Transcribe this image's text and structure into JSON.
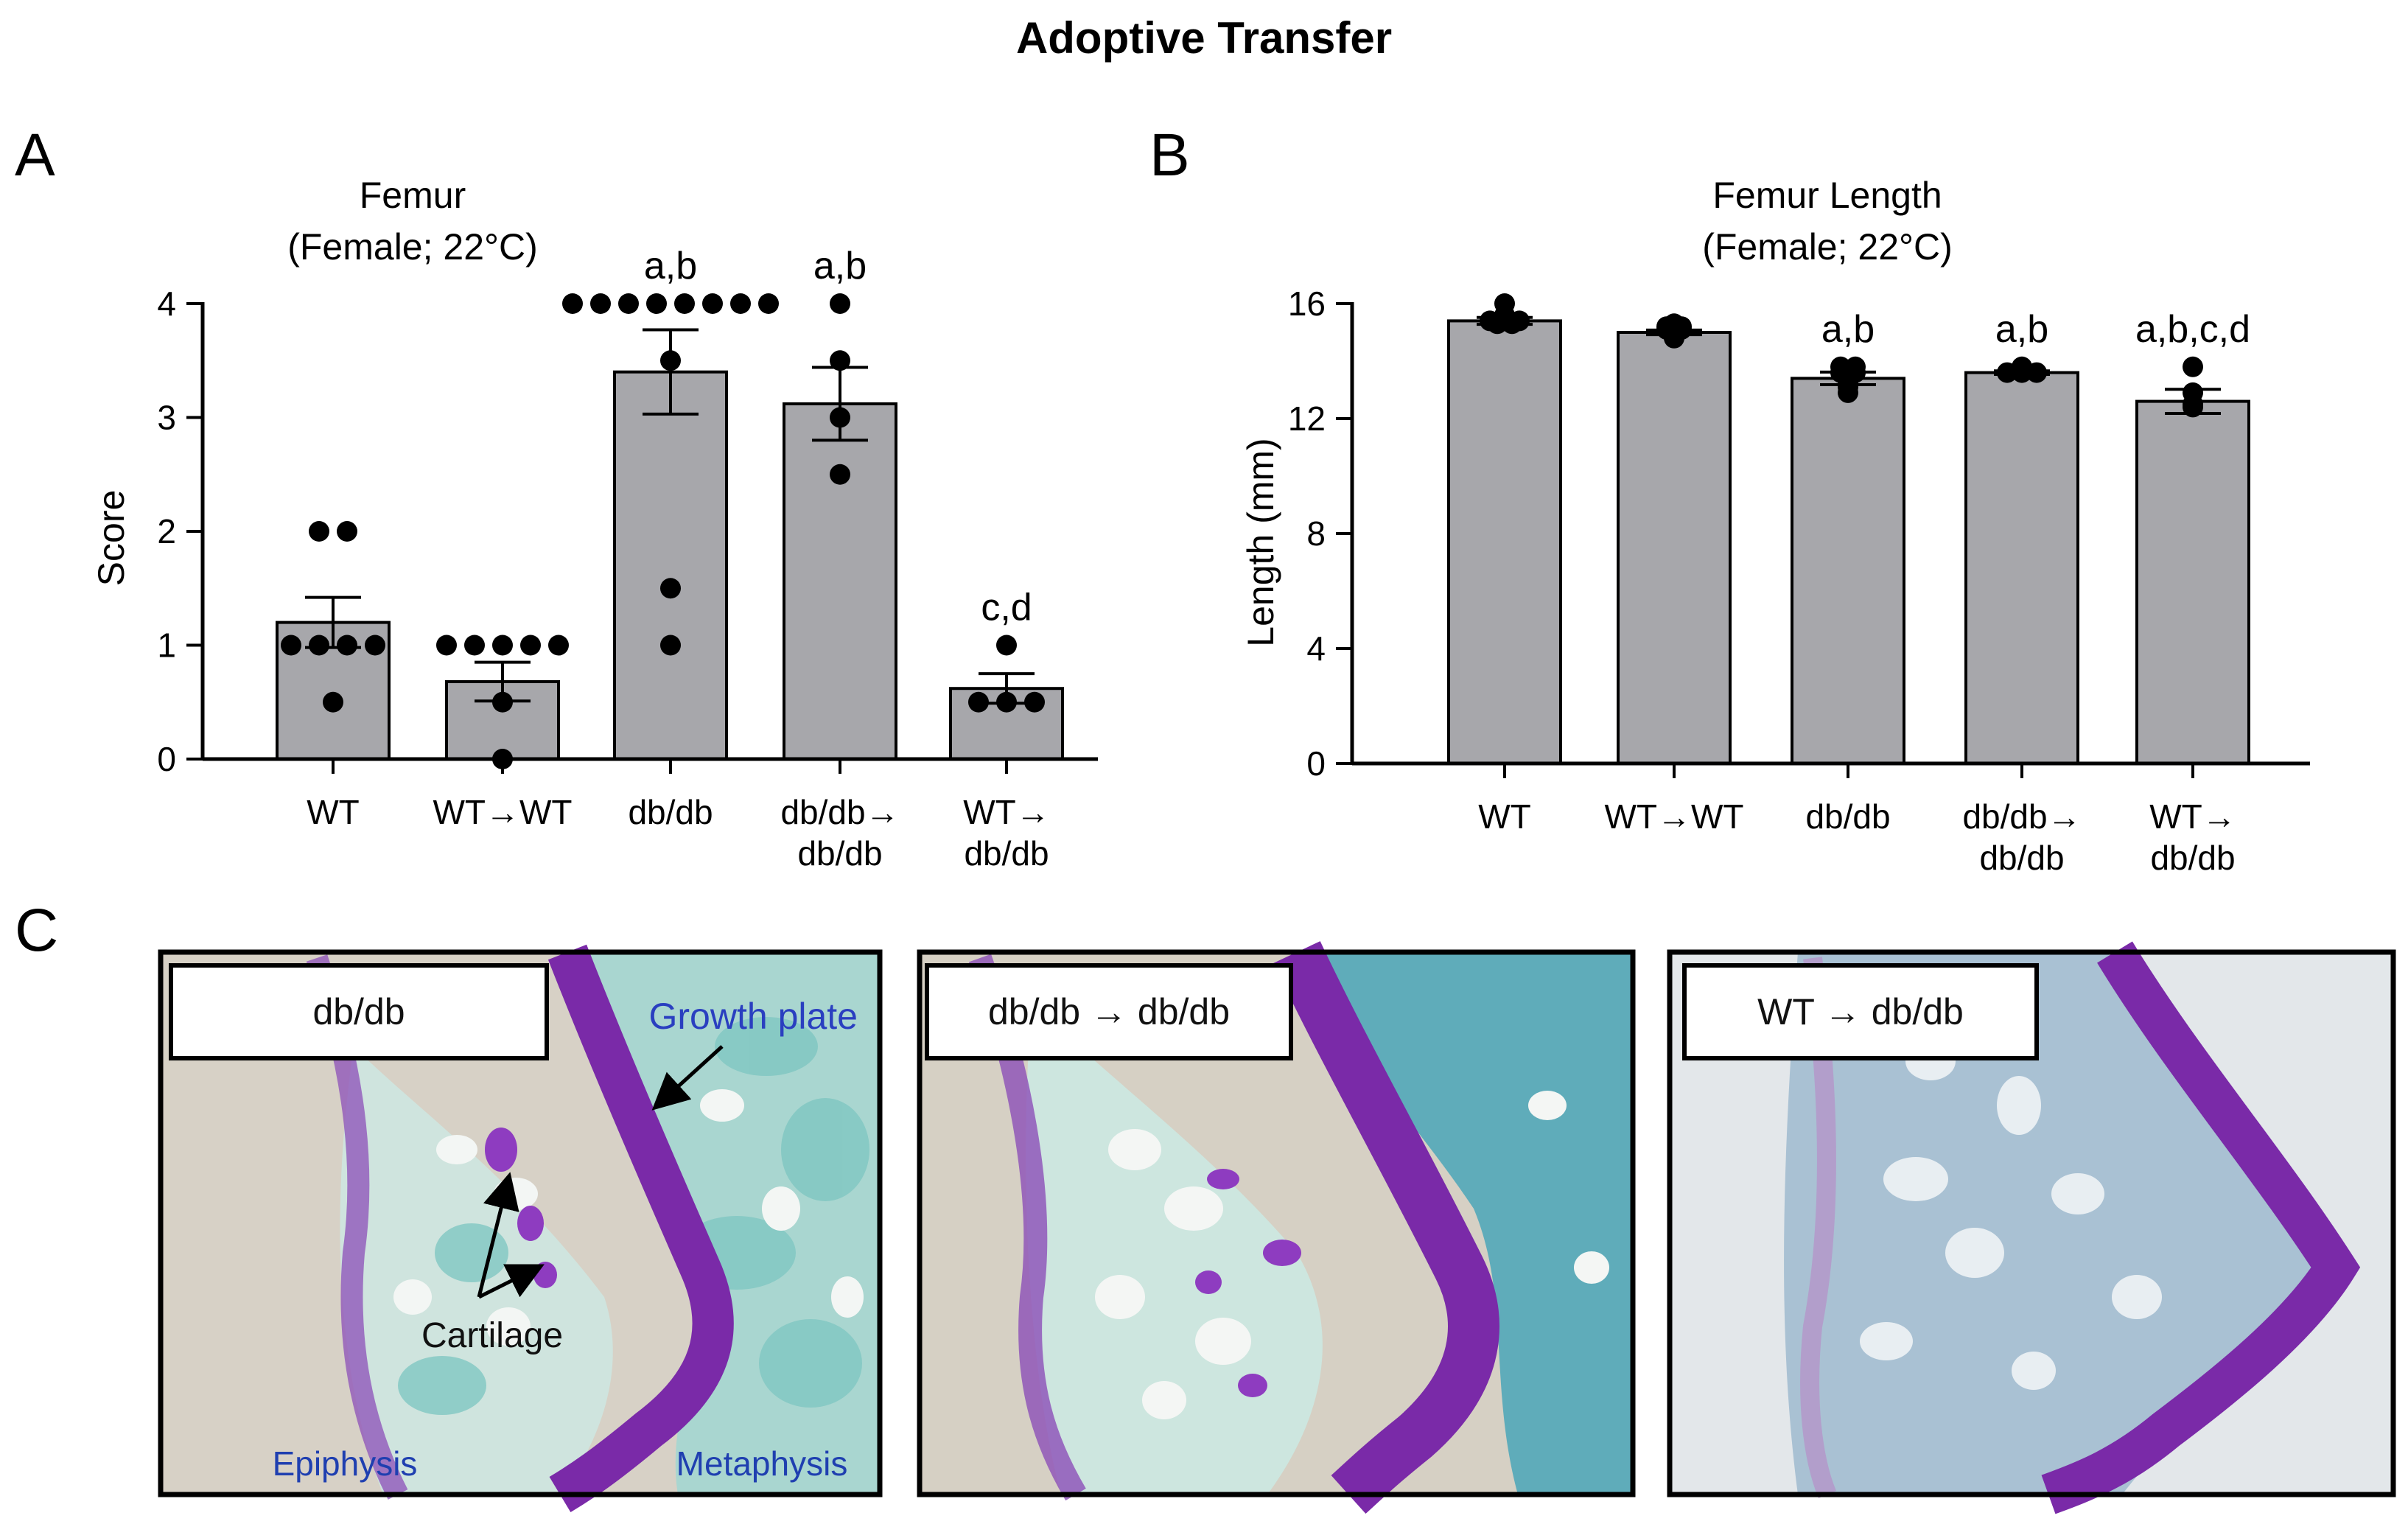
{
  "figure_title": "Adoptive Transfer",
  "panel_letters": [
    "A",
    "B",
    "C"
  ],
  "colors": {
    "bar_fill": "#a7a7ab",
    "bar_edge": "#000000",
    "point": "#000000",
    "stain_purple": "#7a2aa8",
    "stain_teal": "#5fbfbf",
    "label_blue": "#1f3fb0"
  },
  "chart_data": [
    {
      "id": "A",
      "type": "bar",
      "title_lines": [
        "Femur",
        "(Female; 22°C)"
      ],
      "ylabel": "Score",
      "xlabel": "",
      "ylim": [
        0,
        4
      ],
      "yticks": [
        "0",
        "1",
        "2",
        "3",
        "4"
      ],
      "categories": [
        {
          "lines": [
            "WT"
          ]
        },
        {
          "lines": [
            "WT→WT"
          ]
        },
        {
          "lines": [
            "db/db"
          ]
        },
        {
          "lines": [
            "db/db→",
            "db/db"
          ]
        },
        {
          "lines": [
            "WT→",
            "db/db"
          ]
        }
      ],
      "means": [
        1.2,
        0.68,
        3.4,
        3.12,
        0.62
      ],
      "sem": [
        0.22,
        0.17,
        0.37,
        0.32,
        0.13
      ],
      "points": [
        [
          2,
          2,
          1,
          1,
          1,
          1,
          0.5
        ],
        [
          1,
          1,
          1,
          1,
          1,
          0.5,
          0
        ],
        [
          4,
          4,
          4,
          4,
          4,
          4,
          4,
          4,
          3.5,
          1.5,
          1
        ],
        [
          4,
          3.5,
          3,
          2.5
        ],
        [
          1,
          0.5,
          0.5,
          0.5
        ]
      ],
      "significance": [
        "",
        "",
        "a,b",
        "a,b",
        "c,d"
      ]
    },
    {
      "id": "B",
      "type": "bar",
      "title_lines": [
        "Femur Length",
        "(Female; 22°C)"
      ],
      "ylabel": "Length (mm)",
      "xlabel": "",
      "ylim": [
        0,
        16
      ],
      "yticks": [
        "0",
        "4",
        "8",
        "12",
        "16"
      ],
      "categories": [
        {
          "lines": [
            "WT"
          ]
        },
        {
          "lines": [
            "WT→WT"
          ]
        },
        {
          "lines": [
            "db/db"
          ]
        },
        {
          "lines": [
            "db/db→",
            "db/db"
          ]
        },
        {
          "lines": [
            "WT→",
            "db/db"
          ]
        }
      ],
      "means": [
        15.4,
        15.0,
        13.4,
        13.6,
        12.6
      ],
      "sem": [
        0.12,
        0.08,
        0.22,
        0.06,
        0.42
      ],
      "points": [
        [
          16.0,
          15.6,
          15.4,
          15.4,
          15.3,
          15.4,
          15.5,
          15.3
        ],
        [
          15.3,
          15.2,
          15.1,
          14.9,
          14.8,
          15.0,
          15.1,
          15.2
        ],
        [
          13.8,
          13.7,
          13.6,
          13.8,
          13.3,
          13.1,
          12.9,
          13.2,
          13.5,
          13.6
        ],
        [
          13.6,
          13.6,
          13.6,
          13.8
        ],
        [
          13.8,
          12.9,
          12.5,
          12.4
        ]
      ],
      "significance": [
        "",
        "",
        "a,b",
        "a,b",
        "a,b,c,d"
      ]
    }
  ],
  "histology": {
    "panels": [
      {
        "label": "db/db",
        "annotations": {
          "growth_plate": "Growth plate",
          "cartilage": "Cartilage",
          "epiphysis": "Epiphysis",
          "metaphysis": "Metaphysis"
        }
      },
      {
        "label": "db/db → db/db"
      },
      {
        "label": "WT → db/db"
      }
    ]
  }
}
